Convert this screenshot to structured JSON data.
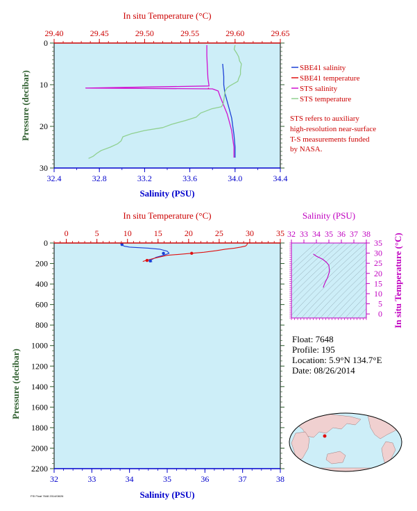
{
  "colors": {
    "plot_bg": "#cdeef8",
    "salinity_axis": "#0000cc",
    "temperature_axis": "#cc0000",
    "pressure_axis": "#2e5e2e",
    "sbe41_salinity": "#1a3fd6",
    "sbe41_temperature": "#e01010",
    "sts_salinity": "#d010d0",
    "sts_temperature": "#8fd08f",
    "ts_accent": "#c000c0",
    "label_red": "#cc0000",
    "map_land": "#f0d0d0",
    "map_ocean": "#cdeef8"
  },
  "chart_data": [
    {
      "id": "near-surface",
      "type": "line",
      "top_axis": {
        "label": "In situ Temperature (°C)",
        "range": [
          29.4,
          29.65
        ],
        "ticks": [
          "29.40",
          "29.45",
          "29.50",
          "29.55",
          "29.60",
          "29.65"
        ]
      },
      "bottom_axis": {
        "label": "Salinity (PSU)",
        "range": [
          32.4,
          34.4
        ],
        "ticks": [
          "32.4",
          "32.8",
          "33.2",
          "33.6",
          "34.0",
          "34.4"
        ]
      },
      "y_axis": {
        "label": "Pressure (decibar)",
        "range": [
          0,
          30
        ],
        "ticks": [
          "0",
          "10",
          "20",
          "30"
        ]
      },
      "series": [
        {
          "name": "SBE41 salinity",
          "axis": "salinity",
          "points": [
            [
              33.89,
              5.0
            ],
            [
              33.9,
              8.0
            ],
            [
              33.9,
              10.0
            ],
            [
              33.91,
              12.0
            ],
            [
              33.93,
              14.0
            ],
            [
              33.95,
              16.0
            ],
            [
              33.97,
              18.0
            ],
            [
              33.98,
              20.0
            ],
            [
              33.99,
              22.0
            ],
            [
              34.0,
              25.0
            ],
            [
              34.0,
              27.5
            ]
          ]
        },
        {
          "name": "SBE41 temperature",
          "axis": "temperature",
          "points": [
            [
              29.571,
              10.8
            ],
            [
              29.57,
              11.0
            ]
          ]
        },
        {
          "name": "STS salinity",
          "axis": "salinity",
          "points": [
            [
              33.75,
              0.5
            ],
            [
              33.75,
              3.0
            ],
            [
              33.755,
              6.0
            ],
            [
              33.76,
              8.5
            ],
            [
              33.77,
              10.3
            ],
            [
              32.68,
              10.8
            ],
            [
              33.8,
              11.0
            ],
            [
              33.85,
              11.5
            ],
            [
              33.87,
              13.0
            ],
            [
              33.9,
              15.0
            ],
            [
              33.93,
              17.0
            ],
            [
              33.95,
              19.0
            ],
            [
              33.97,
              21.0
            ],
            [
              33.98,
              23.0
            ],
            [
              33.99,
              25.0
            ],
            [
              33.99,
              27.5
            ]
          ]
        },
        {
          "name": "STS temperature",
          "axis": "temperature",
          "points": [
            [
              29.6,
              0.5
            ],
            [
              29.599,
              1.5
            ],
            [
              29.602,
              2.5
            ],
            [
              29.604,
              3.3
            ],
            [
              29.605,
              4.3
            ],
            [
              29.607,
              5.0
            ],
            [
              29.606,
              6.5
            ],
            [
              29.606,
              7.5
            ],
            [
              29.604,
              8.5
            ],
            [
              29.603,
              9.2
            ],
            [
              29.598,
              9.8
            ],
            [
              29.594,
              10.3
            ],
            [
              29.591,
              10.8
            ],
            [
              29.589,
              11.5
            ],
            [
              29.588,
              13.0
            ],
            [
              29.587,
              14.5
            ],
            [
              29.585,
              15.3
            ],
            [
              29.574,
              15.8
            ],
            [
              29.568,
              16.3
            ],
            [
              29.562,
              16.8
            ],
            [
              29.557,
              17.8
            ],
            [
              29.545,
              18.6
            ],
            [
              29.53,
              19.5
            ],
            [
              29.52,
              20.3
            ],
            [
              29.5,
              21.0
            ],
            [
              29.485,
              21.8
            ],
            [
              29.476,
              22.5
            ],
            [
              29.474,
              23.5
            ],
            [
              29.47,
              24.2
            ],
            [
              29.462,
              25.0
            ],
            [
              29.452,
              25.8
            ],
            [
              29.447,
              26.5
            ],
            [
              29.443,
              27.2
            ],
            [
              29.438,
              27.7
            ]
          ]
        }
      ],
      "legend": {
        "placement": "right",
        "entries": [
          "SBE41 salinity",
          "SBE41 temperature",
          "STS salinity",
          "STS temperature"
        ]
      },
      "note": [
        "STS refers to auxiliary",
        "high-resolution near-surface",
        "T-S measurements funded",
        "by NASA."
      ]
    },
    {
      "id": "full-profile",
      "type": "line",
      "top_axis": {
        "label": "In situ Temperature (°C)",
        "range": [
          -2,
          35
        ],
        "ticks": [
          "0",
          "5",
          "10",
          "15",
          "20",
          "25",
          "30",
          "35"
        ]
      },
      "bottom_axis": {
        "label": "Salinity (PSU)",
        "range": [
          32,
          38
        ],
        "ticks": [
          "32",
          "33",
          "34",
          "35",
          "36",
          "37",
          "38"
        ]
      },
      "y_axis": {
        "label": "Pressure (decibar)",
        "range": [
          0,
          2200
        ],
        "ticks": [
          "0",
          "200",
          "400",
          "600",
          "800",
          "1000",
          "1200",
          "1400",
          "1600",
          "1800",
          "2000",
          "2200"
        ]
      },
      "series": [
        {
          "name": "SBE41 salinity",
          "axis": "salinity",
          "points": [
            [
              33.75,
              0
            ],
            [
              33.78,
              10
            ],
            [
              33.82,
              20
            ],
            [
              33.85,
              30
            ],
            [
              34.0,
              40
            ],
            [
              34.5,
              50
            ],
            [
              34.8,
              60
            ],
            [
              35.0,
              80
            ],
            [
              35.05,
              100
            ],
            [
              34.9,
              120
            ],
            [
              34.7,
              140
            ],
            [
              34.6,
              160
            ],
            [
              34.55,
              175
            ],
            [
              34.6,
              185
            ]
          ]
        },
        {
          "name": "SBE41 temperature",
          "axis": "temperature",
          "points": [
            [
              29.6,
              0
            ],
            [
              29.6,
              10
            ],
            [
              29.5,
              20
            ],
            [
              29.3,
              30
            ],
            [
              28.5,
              40
            ],
            [
              27.5,
              50
            ],
            [
              26.0,
              60
            ],
            [
              24.5,
              75
            ],
            [
              22.5,
              90
            ],
            [
              20.5,
              100
            ],
            [
              18.5,
              110
            ],
            [
              16.5,
              120
            ],
            [
              15.0,
              140
            ],
            [
              14.0,
              155
            ],
            [
              13.0,
              170
            ],
            [
              12.5,
              180
            ]
          ]
        }
      ],
      "point_markers": [
        {
          "axis": "salinity",
          "x": 33.8,
          "y": 15
        },
        {
          "axis": "salinity",
          "x": 34.9,
          "y": 100
        },
        {
          "axis": "salinity",
          "x": 34.55,
          "y": 175
        },
        {
          "axis": "temperature",
          "x": 20.5,
          "y": 100
        },
        {
          "axis": "temperature",
          "x": 13.2,
          "y": 170
        }
      ]
    },
    {
      "id": "ts-diagram",
      "type": "line",
      "top_axis": {
        "label": "Salinity (PSU)",
        "range": [
          32,
          38
        ],
        "ticks": [
          "32",
          "33",
          "34",
          "35",
          "36",
          "37",
          "38"
        ]
      },
      "y_axis": {
        "label": "In situ Temperature (°C)",
        "range": [
          -2,
          35
        ],
        "ticks": [
          "0",
          "5",
          "10",
          "15",
          "20",
          "25",
          "30",
          "35"
        ]
      },
      "series": [
        {
          "name": "TS curve",
          "points": [
            [
              33.75,
              29.6
            ],
            [
              34.0,
              28.5
            ],
            [
              34.5,
              27.0
            ],
            [
              34.8,
              25.5
            ],
            [
              35.0,
              24.0
            ],
            [
              35.05,
              21.0
            ],
            [
              34.9,
              18.0
            ],
            [
              34.7,
              15.5
            ],
            [
              34.6,
              14.0
            ],
            [
              34.55,
              13.0
            ]
          ]
        }
      ]
    }
  ],
  "float_info": {
    "float_line": "Float:  7648",
    "profile_line": "Profile:  195",
    "location_line": "Location:  5.9°N  134.7°E",
    "date_line": "Date:  08/26/2014"
  },
  "footer": {
    "credit": "FSI Float 7648 2014/08/26"
  }
}
